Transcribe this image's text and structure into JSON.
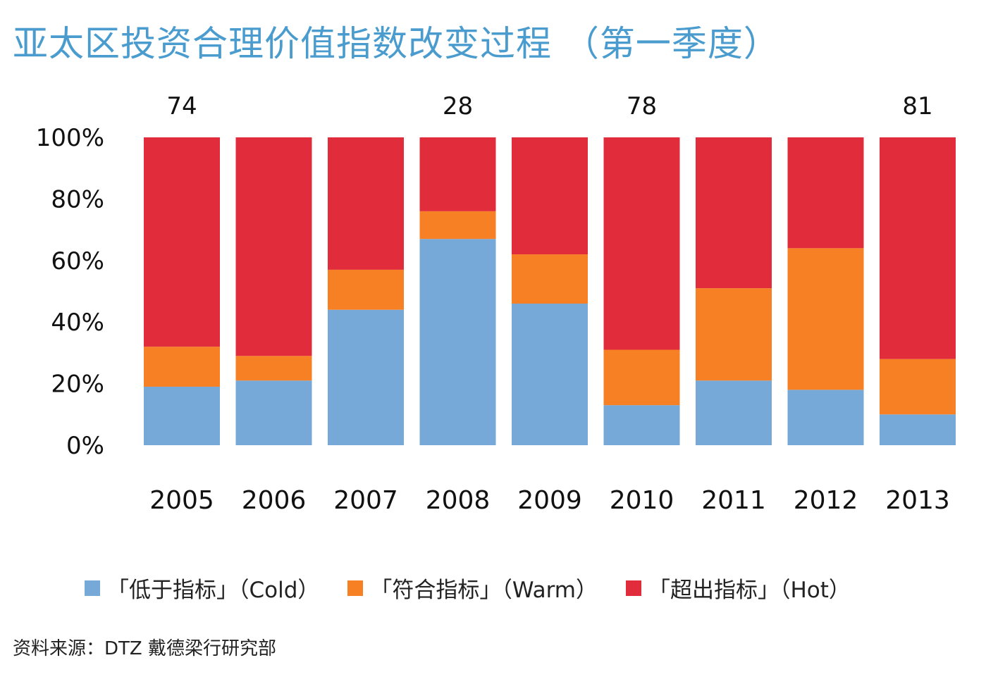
{
  "title": "亚太区投资合理价值指数改变过程 （第一季度）",
  "source": "资料来源：DTZ 戴德梁行研究部",
  "chart_data": {
    "type": "bar",
    "stacked": true,
    "categories": [
      "2005",
      "2006",
      "2007",
      "2008",
      "2009",
      "2010",
      "2011",
      "2012",
      "2013"
    ],
    "ylim": [
      0,
      100
    ],
    "yticks": [
      "0%",
      "20%",
      "40%",
      "60%",
      "80%",
      "100%"
    ],
    "series": [
      {
        "name": "「低于指标」（Cold）",
        "color": "#76a8d8",
        "values": [
          19,
          21,
          44,
          67,
          46,
          13,
          21,
          18,
          10
        ]
      },
      {
        "name": "「符合指标」（Warm）",
        "color": "#f77f24",
        "values": [
          13,
          8,
          13,
          9,
          16,
          18,
          30,
          46,
          18
        ]
      },
      {
        "name": "「超出指标」（Hot）",
        "color": "#e02c3b",
        "values": [
          68,
          71,
          43,
          24,
          38,
          69,
          49,
          36,
          72
        ]
      }
    ],
    "annotations": [
      {
        "category": "2005",
        "text": "74"
      },
      {
        "category": "2008",
        "text": "28"
      },
      {
        "category": "2010",
        "text": "78"
      },
      {
        "category": "2013",
        "text": "81"
      }
    ],
    "legend_position": "bottom"
  }
}
